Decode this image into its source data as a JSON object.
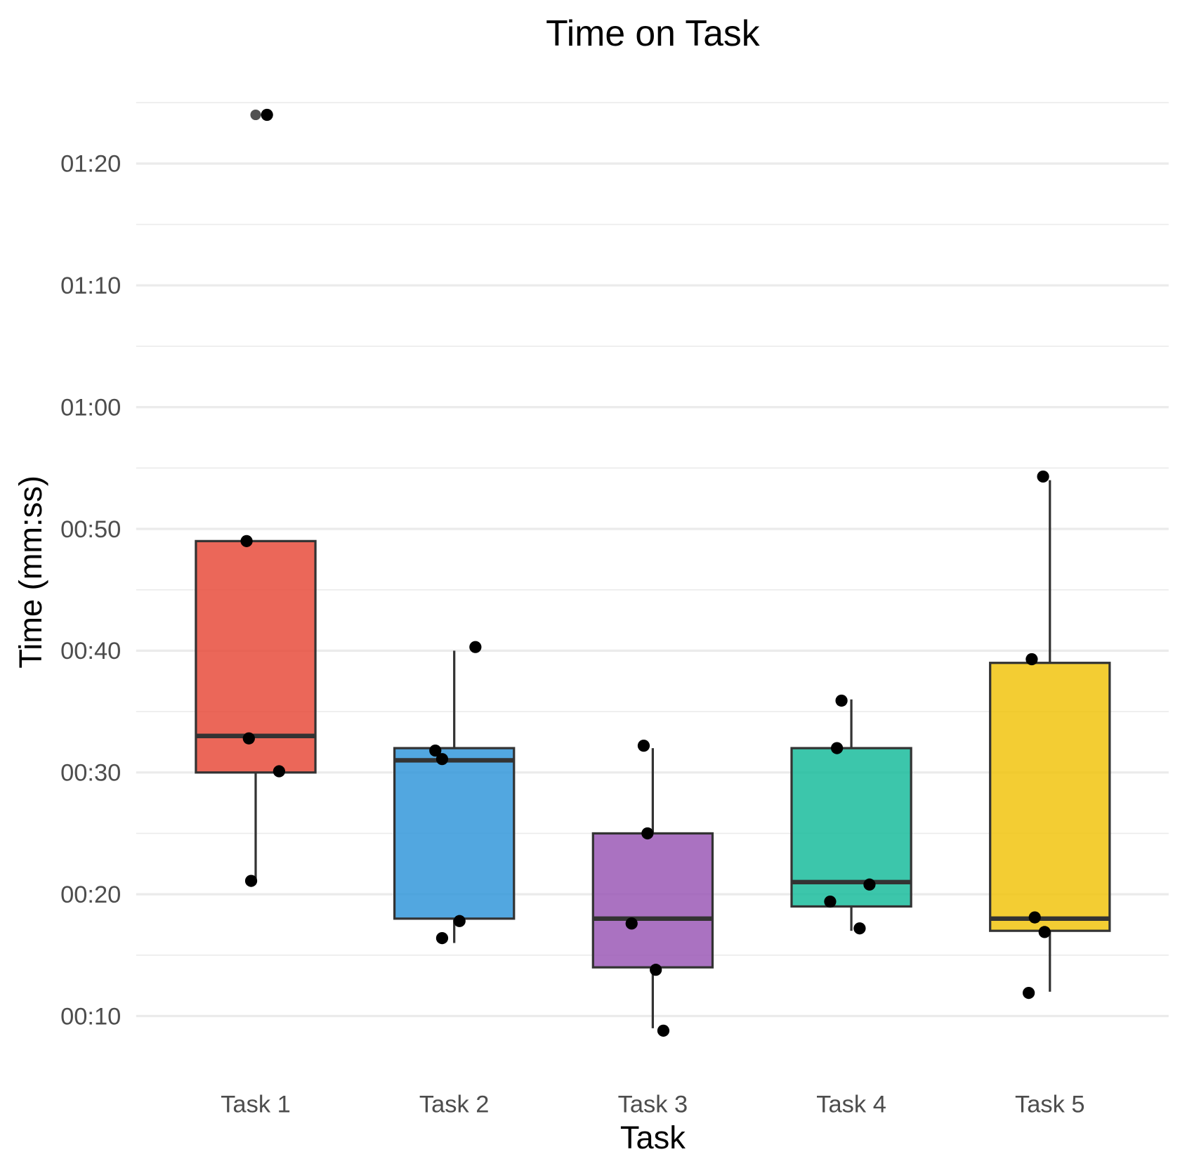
{
  "chart_data": {
    "type": "box",
    "title": "Time on Task",
    "xlabel": "Task",
    "ylabel": "Time (mm:ss)",
    "categories": [
      "Task 1",
      "Task 2",
      "Task 3",
      "Task 4",
      "Task 5"
    ],
    "y_unit": "seconds",
    "ylim": [
      7,
      86
    ],
    "y_ticks": [
      10,
      20,
      30,
      40,
      50,
      60,
      70,
      80
    ],
    "y_tick_labels": [
      "00:10",
      "00:20",
      "00:30",
      "00:40",
      "00:50",
      "01:00",
      "01:10",
      "01:20"
    ],
    "grid": true,
    "legend": "none",
    "colors": [
      "#E74C3C",
      "#3498DB",
      "#9B59B6",
      "#1ABC9C",
      "#F1C40F"
    ],
    "boxes": [
      {
        "q1": 30,
        "median": 33,
        "q3": 49,
        "whisker_low": 21,
        "whisker_high": 49,
        "outliers": [
          84
        ]
      },
      {
        "q1": 18,
        "median": 31,
        "q3": 32,
        "whisker_low": 16,
        "whisker_high": 40,
        "outliers": []
      },
      {
        "q1": 14,
        "median": 18,
        "q3": 25,
        "whisker_low": 9,
        "whisker_high": 32,
        "outliers": []
      },
      {
        "q1": 19,
        "median": 21,
        "q3": 32,
        "whisker_low": 17,
        "whisker_high": 36,
        "outliers": []
      },
      {
        "q1": 17,
        "median": 18,
        "q3": 39,
        "whisker_low": 12,
        "whisker_high": 54,
        "outliers": []
      }
    ],
    "points": [
      [
        84,
        49,
        32.8,
        30.1,
        21.1
      ],
      [
        40.3,
        31.8,
        31.1,
        17.8,
        16.4
      ],
      [
        32.2,
        25,
        17.6,
        13.8,
        8.8
      ],
      [
        35.9,
        32,
        20.8,
        19.4,
        17.2
      ],
      [
        54.3,
        39.3,
        18.1,
        16.9,
        11.9
      ]
    ]
  }
}
